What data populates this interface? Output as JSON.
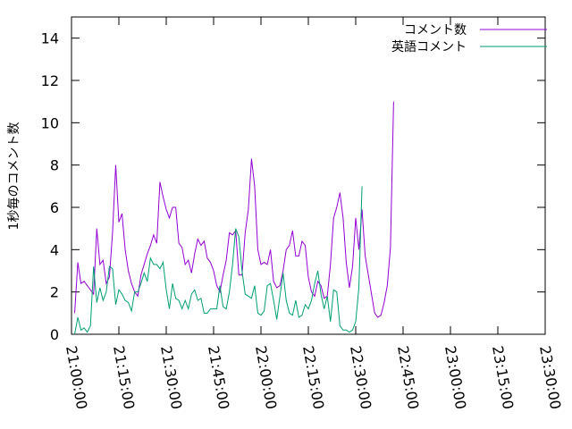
{
  "chart_data": {
    "type": "line",
    "ylabel": "1秒毎のコメント数",
    "xlabel": "",
    "xlim": [
      "21:00:00",
      "23:30:00"
    ],
    "ylim": [
      0,
      15
    ],
    "x_ticks": [
      "21:00:00",
      "21:15:00",
      "21:30:00",
      "21:45:00",
      "22:00:00",
      "22:15:00",
      "22:30:00",
      "22:45:00",
      "23:00:00",
      "23:15:00",
      "23:30:00"
    ],
    "y_ticks": [
      0,
      2,
      4,
      6,
      8,
      10,
      12,
      14
    ],
    "legend_position": "top-right",
    "series": [
      {
        "name": "コメント数",
        "color": "#9400d3",
        "points": [
          [
            "21:01:00",
            1.0
          ],
          [
            "21:02:00",
            3.4
          ],
          [
            "21:03:00",
            2.4
          ],
          [
            "21:04:00",
            2.5
          ],
          [
            "21:05:00",
            2.3
          ],
          [
            "21:06:00",
            2.1
          ],
          [
            "21:07:00",
            1.9
          ],
          [
            "21:08:00",
            5.0
          ],
          [
            "21:09:00",
            3.3
          ],
          [
            "21:10:00",
            3.5
          ],
          [
            "21:11:00",
            2.4
          ],
          [
            "21:12:00",
            2.7
          ],
          [
            "21:13:00",
            4.8
          ],
          [
            "21:14:00",
            8.0
          ],
          [
            "21:15:00",
            5.3
          ],
          [
            "21:16:00",
            5.7
          ],
          [
            "21:17:00",
            4.0
          ],
          [
            "21:18:00",
            3.0
          ],
          [
            "21:19:00",
            2.4
          ],
          [
            "21:20:00",
            2.0
          ],
          [
            "21:21:00",
            1.8
          ],
          [
            "21:22:00",
            2.8
          ],
          [
            "21:23:00",
            3.3
          ],
          [
            "21:24:00",
            3.8
          ],
          [
            "21:25:00",
            4.2
          ],
          [
            "21:26:00",
            4.7
          ],
          [
            "21:27:00",
            4.3
          ],
          [
            "21:28:00",
            7.2
          ],
          [
            "21:29:00",
            6.5
          ],
          [
            "21:30:00",
            5.9
          ],
          [
            "21:31:00",
            5.5
          ],
          [
            "21:32:00",
            6.0
          ],
          [
            "21:33:00",
            6.0
          ],
          [
            "21:34:00",
            4.3
          ],
          [
            "21:35:00",
            4.1
          ],
          [
            "21:36:00",
            3.3
          ],
          [
            "21:37:00",
            3.5
          ],
          [
            "21:38:00",
            2.9
          ],
          [
            "21:39:00",
            3.8
          ],
          [
            "21:40:00",
            4.5
          ],
          [
            "21:41:00",
            4.2
          ],
          [
            "21:42:00",
            4.4
          ],
          [
            "21:43:00",
            3.6
          ],
          [
            "21:44:00",
            3.4
          ],
          [
            "21:45:00",
            3.0
          ],
          [
            "21:46:00",
            2.3
          ],
          [
            "21:47:00",
            2.0
          ],
          [
            "21:48:00",
            2.8
          ],
          [
            "21:49:00",
            3.5
          ],
          [
            "21:50:00",
            4.8
          ],
          [
            "21:51:00",
            4.7
          ],
          [
            "21:52:00",
            4.9
          ],
          [
            "21:53:00",
            2.8
          ],
          [
            "21:54:00",
            2.8
          ],
          [
            "21:55:00",
            4.8
          ],
          [
            "21:56:00",
            5.9
          ],
          [
            "21:57:00",
            8.3
          ],
          [
            "21:58:00",
            7.0
          ],
          [
            "21:59:00",
            4.0
          ],
          [
            "22:00:00",
            3.3
          ],
          [
            "22:01:00",
            3.4
          ],
          [
            "22:02:00",
            3.3
          ],
          [
            "22:03:00",
            4.0
          ],
          [
            "22:04:00",
            2.5
          ],
          [
            "22:05:00",
            2.2
          ],
          [
            "22:06:00",
            2.3
          ],
          [
            "22:07:00",
            3.0
          ],
          [
            "22:08:00",
            4.0
          ],
          [
            "22:09:00",
            4.2
          ],
          [
            "22:10:00",
            4.9
          ],
          [
            "22:11:00",
            3.7
          ],
          [
            "22:12:00",
            3.7
          ],
          [
            "22:13:00",
            4.4
          ],
          [
            "22:14:00",
            4.2
          ],
          [
            "22:15:00",
            2.7
          ],
          [
            "22:16:00",
            2.0
          ],
          [
            "22:17:00",
            1.8
          ],
          [
            "22:18:00",
            2.5
          ],
          [
            "22:19:00",
            2.3
          ],
          [
            "22:20:00",
            1.7
          ],
          [
            "22:21:00",
            1.8
          ],
          [
            "22:22:00",
            3.3
          ],
          [
            "22:23:00",
            5.5
          ],
          [
            "22:24:00",
            6.0
          ],
          [
            "22:25:00",
            6.7
          ],
          [
            "22:26:00",
            5.5
          ],
          [
            "22:27:00",
            3.4
          ],
          [
            "22:28:00",
            2.2
          ],
          [
            "22:29:00",
            3.2
          ],
          [
            "22:30:00",
            5.5
          ],
          [
            "22:31:00",
            4.0
          ],
          [
            "22:32:00",
            5.9
          ],
          [
            "22:33:00",
            3.7
          ],
          [
            "22:34:00",
            2.8
          ],
          [
            "22:35:00",
            1.9
          ],
          [
            "22:36:00",
            1.0
          ],
          [
            "22:37:00",
            0.8
          ],
          [
            "22:38:00",
            0.9
          ],
          [
            "22:39:00",
            1.5
          ],
          [
            "22:40:00",
            2.3
          ],
          [
            "22:41:00",
            4.1
          ],
          [
            "22:42:00",
            11.0
          ]
        ]
      },
      {
        "name": "英語コメント",
        "color": "#009e73",
        "points": [
          [
            "21:01:00",
            0.0
          ],
          [
            "21:02:00",
            0.8
          ],
          [
            "21:03:00",
            0.2
          ],
          [
            "21:04:00",
            0.3
          ],
          [
            "21:05:00",
            0.1
          ],
          [
            "21:06:00",
            0.4
          ],
          [
            "21:07:00",
            3.2
          ],
          [
            "21:08:00",
            1.5
          ],
          [
            "21:09:00",
            2.2
          ],
          [
            "21:10:00",
            1.6
          ],
          [
            "21:11:00",
            2.0
          ],
          [
            "21:12:00",
            3.2
          ],
          [
            "21:13:00",
            3.1
          ],
          [
            "21:14:00",
            1.4
          ],
          [
            "21:15:00",
            2.1
          ],
          [
            "21:16:00",
            1.9
          ],
          [
            "21:17:00",
            1.6
          ],
          [
            "21:18:00",
            1.5
          ],
          [
            "21:19:00",
            1.1
          ],
          [
            "21:20:00",
            2.0
          ],
          [
            "21:21:00",
            2.0
          ],
          [
            "21:22:00",
            2.4
          ],
          [
            "21:23:00",
            2.9
          ],
          [
            "21:24:00",
            2.5
          ],
          [
            "21:25:00",
            3.6
          ],
          [
            "21:26:00",
            3.3
          ],
          [
            "21:27:00",
            3.3
          ],
          [
            "21:28:00",
            3.1
          ],
          [
            "21:29:00",
            3.4
          ],
          [
            "21:30:00",
            2.1
          ],
          [
            "21:31:00",
            1.2
          ],
          [
            "21:32:00",
            2.4
          ],
          [
            "21:33:00",
            1.7
          ],
          [
            "21:34:00",
            1.6
          ],
          [
            "21:35:00",
            1.2
          ],
          [
            "21:36:00",
            1.6
          ],
          [
            "21:37:00",
            1.2
          ],
          [
            "21:38:00",
            1.9
          ],
          [
            "21:39:00",
            2.1
          ],
          [
            "21:40:00",
            1.6
          ],
          [
            "21:41:00",
            1.7
          ],
          [
            "21:42:00",
            1.0
          ],
          [
            "21:43:00",
            1.0
          ],
          [
            "21:44:00",
            1.2
          ],
          [
            "21:45:00",
            1.2
          ],
          [
            "21:46:00",
            1.2
          ],
          [
            "21:47:00",
            2.3
          ],
          [
            "21:48:00",
            1.3
          ],
          [
            "21:49:00",
            1.2
          ],
          [
            "21:50:00",
            2.0
          ],
          [
            "21:51:00",
            3.3
          ],
          [
            "21:52:00",
            5.0
          ],
          [
            "21:53:00",
            4.6
          ],
          [
            "21:54:00",
            3.0
          ],
          [
            "21:55:00",
            1.9
          ],
          [
            "21:56:00",
            1.8
          ],
          [
            "21:57:00",
            1.7
          ],
          [
            "21:58:00",
            2.3
          ],
          [
            "21:59:00",
            1.0
          ],
          [
            "22:00:00",
            0.9
          ],
          [
            "22:01:00",
            1.1
          ],
          [
            "22:02:00",
            2.3
          ],
          [
            "22:03:00",
            2.4
          ],
          [
            "22:04:00",
            1.6
          ],
          [
            "22:05:00",
            0.7
          ],
          [
            "22:06:00",
            1.8
          ],
          [
            "22:07:00",
            2.9
          ],
          [
            "22:08:00",
            1.6
          ],
          [
            "22:09:00",
            1.0
          ],
          [
            "22:10:00",
            0.9
          ],
          [
            "22:11:00",
            1.6
          ],
          [
            "22:12:00",
            0.8
          ],
          [
            "22:13:00",
            0.9
          ],
          [
            "22:14:00",
            1.4
          ],
          [
            "22:15:00",
            1.2
          ],
          [
            "22:16:00",
            1.6
          ],
          [
            "22:17:00",
            2.4
          ],
          [
            "22:18:00",
            3.0
          ],
          [
            "22:19:00",
            1.9
          ],
          [
            "22:20:00",
            1.2
          ],
          [
            "22:21:00",
            1.8
          ],
          [
            "22:22:00",
            0.6
          ],
          [
            "22:23:00",
            2.1
          ],
          [
            "22:24:00",
            2.0
          ],
          [
            "22:25:00",
            0.4
          ],
          [
            "22:26:00",
            0.2
          ],
          [
            "22:27:00",
            0.2
          ],
          [
            "22:28:00",
            0.1
          ],
          [
            "22:29:00",
            0.2
          ],
          [
            "22:30:00",
            0.6
          ],
          [
            "22:31:00",
            2.2
          ],
          [
            "22:32:00",
            7.0
          ]
        ]
      }
    ]
  }
}
